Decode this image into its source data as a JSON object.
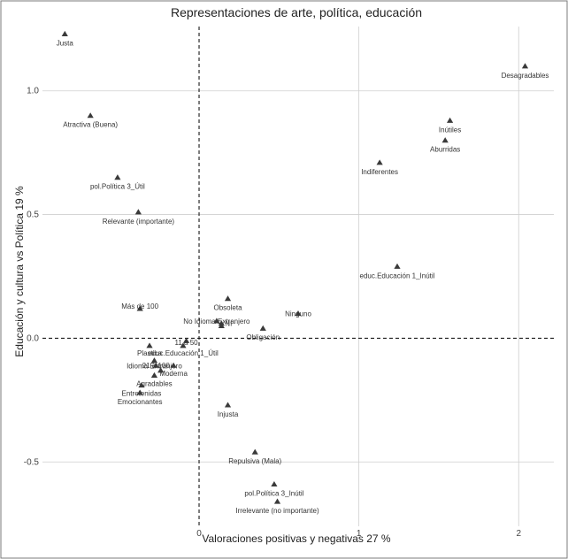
{
  "chart_data": {
    "type": "scatter",
    "title": "Representaciones de arte, política, educación",
    "xlabel": "Valoraciones positivas y negativas 27 %",
    "ylabel": "Educación y cultura vs Política 19 %",
    "xlim": [
      -0.98,
      2.22
    ],
    "ylim": [
      -0.76,
      1.26
    ],
    "xticks": [
      {
        "value": 0,
        "label": "0"
      },
      {
        "value": 1,
        "label": "1"
      },
      {
        "value": 2,
        "label": "2"
      }
    ],
    "yticks": [
      {
        "value": -0.5,
        "label": "-0.5"
      },
      {
        "value": 0.0,
        "label": "0.0"
      },
      {
        "value": 0.5,
        "label": "0.5"
      },
      {
        "value": 1.0,
        "label": "1.0"
      }
    ],
    "grid": true,
    "reference_lines": {
      "x": 0,
      "y": 0,
      "style": "dashed"
    },
    "points": [
      {
        "label": "Justa",
        "x": -0.84,
        "y": 1.23,
        "anchor": "middle",
        "dy": 10
      },
      {
        "label": "Desagradables",
        "x": 2.04,
        "y": 1.1,
        "anchor": "middle",
        "dy": 10
      },
      {
        "label": "Atractiva (Buena)",
        "x": -0.68,
        "y": 0.9,
        "anchor": "middle",
        "dy": 10
      },
      {
        "label": "Inútiles",
        "x": 1.57,
        "y": 0.88,
        "anchor": "middle",
        "dy": 10
      },
      {
        "label": "Aburridas",
        "x": 1.54,
        "y": 0.8,
        "anchor": "middle",
        "dy": 10
      },
      {
        "label": "Indiferentes",
        "x": 1.13,
        "y": 0.71,
        "anchor": "middle",
        "dy": 10
      },
      {
        "label": "pol.Política 3_Útil",
        "x": -0.51,
        "y": 0.65,
        "anchor": "middle",
        "dy": 10
      },
      {
        "label": "Relevante (importante)",
        "x": -0.38,
        "y": 0.51,
        "anchor": "middle",
        "dy": 10
      },
      {
        "label": "educ.Educación 1_Inútil",
        "x": 1.24,
        "y": 0.29,
        "anchor": "middle",
        "dy": 10
      },
      {
        "label": "Obsoleta",
        "x": 0.18,
        "y": 0.16,
        "anchor": "middle",
        "dy": 10
      },
      {
        "label": "Más de 100",
        "x": -0.37,
        "y": 0.12,
        "anchor": "middle",
        "dy": -3
      },
      {
        "label": "Ninguno",
        "x": 0.62,
        "y": 0.1,
        "anchor": "middle",
        "dy": 0
      },
      {
        "label": "No Idioma Extranjero",
        "x": 0.11,
        "y": 0.07,
        "anchor": "middle",
        "dy": 0
      },
      {
        "label": "NI",
        "x": 0.14,
        "y": 0.06,
        "anchor": "start",
        "dy": 0
      },
      {
        "label": "",
        "x": 0.14,
        "y": 0.05,
        "anchor": "middle",
        "dy": 0
      },
      {
        "label": "Obligación",
        "x": 0.4,
        "y": 0.04,
        "anchor": "middle",
        "dy": 10
      },
      {
        "label": "11 a 50",
        "x": -0.08,
        "y": -0.01,
        "anchor": "middle",
        "dy": 2
      },
      {
        "label": "Plastica",
        "x": -0.31,
        "y": -0.03,
        "anchor": "middle",
        "dy": 8
      },
      {
        "label": "educ.Educación 1_Útil",
        "x": -0.1,
        "y": -0.03,
        "anchor": "middle",
        "dy": 8
      },
      {
        "label": "Idioma Extranjero",
        "x": -0.28,
        "y": -0.09,
        "anchor": "middle",
        "dy": 6
      },
      {
        "label": "21 a 100",
        "x": -0.27,
        "y": -0.11,
        "anchor": "middle",
        "dy": 0
      },
      {
        "label": "Moderna",
        "x": -0.16,
        "y": -0.11,
        "anchor": "middle",
        "dy": 9
      },
      {
        "label": "",
        "x": -0.24,
        "y": -0.13,
        "anchor": "middle",
        "dy": 0
      },
      {
        "label": "Agradables",
        "x": -0.28,
        "y": -0.15,
        "anchor": "middle",
        "dy": 9
      },
      {
        "label": "Entretenidas",
        "x": -0.36,
        "y": -0.19,
        "anchor": "middle",
        "dy": 9
      },
      {
        "label": "Emocionantes",
        "x": -0.37,
        "y": -0.22,
        "anchor": "middle",
        "dy": 10
      },
      {
        "label": "Injusta",
        "x": 0.18,
        "y": -0.27,
        "anchor": "middle",
        "dy": 10
      },
      {
        "label": "Repulsiva (Mala)",
        "x": 0.35,
        "y": -0.46,
        "anchor": "middle",
        "dy": 10
      },
      {
        "label": "pol.Política 3_Inútil",
        "x": 0.47,
        "y": -0.59,
        "anchor": "middle",
        "dy": 10
      },
      {
        "label": "Irrelevante (no importante)",
        "x": 0.49,
        "y": -0.66,
        "anchor": "middle",
        "dy": 10
      }
    ]
  }
}
